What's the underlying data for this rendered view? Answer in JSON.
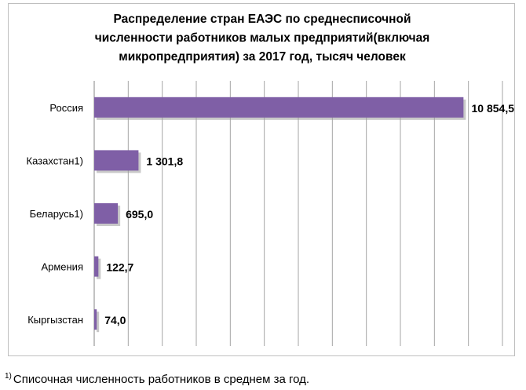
{
  "chart_data": {
    "type": "bar",
    "orientation": "horizontal",
    "title_lines": [
      "Распределение стран ЕАЭС по среднесписочной",
      "численности работников малых предприятий(включая",
      "микропредприятия) за 2017 год, тысяч человек"
    ],
    "categories": [
      "Россия",
      "Казахстан1)",
      "Беларусь1)",
      "Армения",
      "Кыргызстан"
    ],
    "values": [
      10854.5,
      1301.8,
      695.0,
      122.7,
      74.0
    ],
    "value_labels": [
      "10 854,5",
      "1 301,8",
      "695,0",
      "122,7",
      "74,0"
    ],
    "xlim": [
      0,
      12000
    ],
    "grid_step": 1000,
    "grid": true,
    "legend": "none",
    "bar_color": "#7f5fa6",
    "bar_shadow_color": "#9a9a9a"
  },
  "footnote": {
    "marker": "1)",
    "text": "Списочная численность работников в среднем за год."
  }
}
